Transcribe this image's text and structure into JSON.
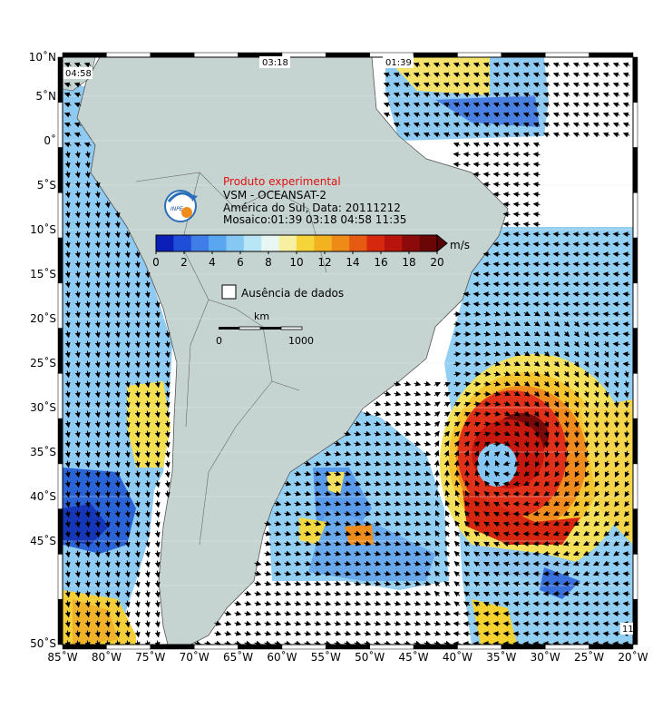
{
  "title_block": {
    "line1": "Produto experimental",
    "line2": "VSM - OCEANSAT-2",
    "line3": "América do Sul, Data: 20111212",
    "line4": "Mosaico:01:39 03:18 04:58 11:35",
    "logo_text": "INPE"
  },
  "colorbar": {
    "unit": "m/s",
    "ticks": [
      "0",
      "2",
      "4",
      "6",
      "8",
      "10",
      "12",
      "14",
      "16",
      "18",
      "20"
    ],
    "colors": [
      "#0a1fb8",
      "#1f4fd8",
      "#3f7ee8",
      "#5aa6f0",
      "#86c8f4",
      "#b8e6f6",
      "#e8f7f4",
      "#f6f0a0",
      "#f5d43a",
      "#f3b220",
      "#ee8a16",
      "#e65a12",
      "#d6280e",
      "#b8140c",
      "#8c0a0a",
      "#6a0606"
    ]
  },
  "legend_missing": "Ausência de dados",
  "scalebar": {
    "unit": "km",
    "start": "0",
    "end": "1000"
  },
  "pass_times": [
    "04:58",
    "03:18",
    "01:39",
    "11"
  ],
  "axes": {
    "lat_labels": [
      "10˚N",
      "5˚N",
      "0˚",
      "5˚S",
      "10˚S",
      "15˚S",
      "20˚S",
      "25˚S",
      "30˚S",
      "35˚S",
      "40˚S",
      "45˚S",
      "50˚S"
    ],
    "lon_labels": [
      "85˚W",
      "80˚W",
      "75˚W",
      "70˚W",
      "65˚W",
      "60˚W",
      "55˚W",
      "50˚W",
      "45˚W",
      "40˚W",
      "35˚W",
      "30˚W",
      "25˚W",
      "20˚W"
    ]
  },
  "colors": {
    "land": "#c6d4d1",
    "ocean_missing": "#ffffff",
    "frame": "#000000"
  }
}
